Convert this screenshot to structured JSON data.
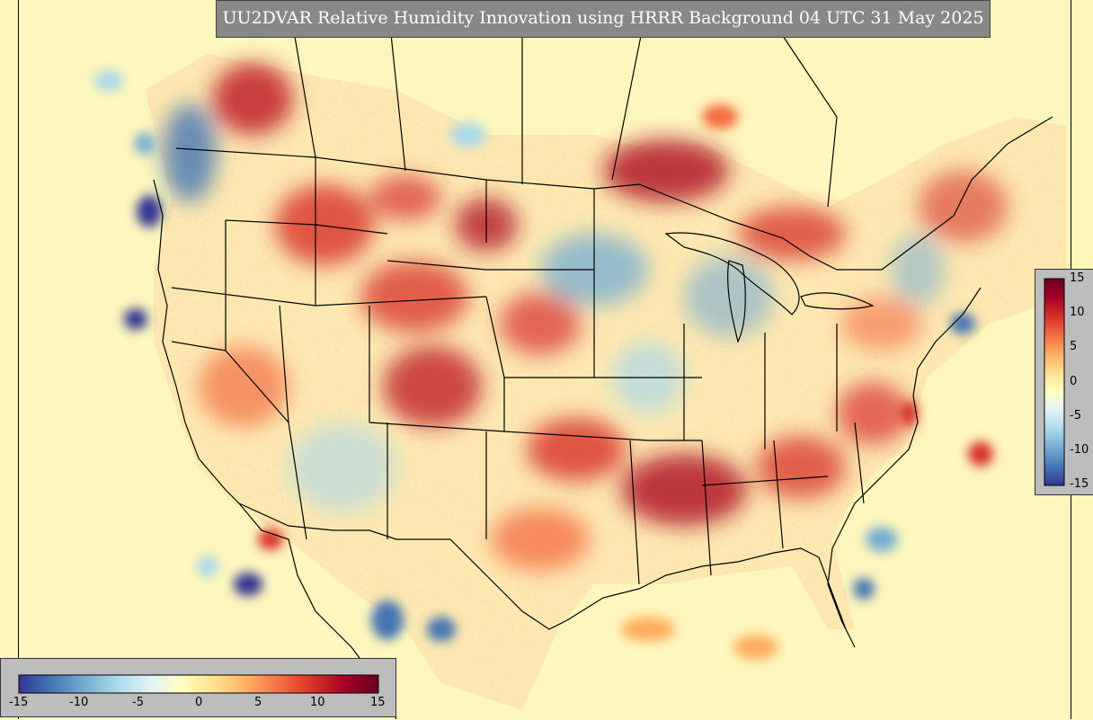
{
  "title": "UU2DVAR Relative Humidity Innovation using HRRR Background 04 UTC 31 May 2025",
  "colorbar": {
    "vmin": -15,
    "vmax": 15,
    "ticks": [
      "-15",
      "-10",
      "-5",
      "0",
      "5",
      "10",
      "15"
    ],
    "colors": [
      "#313695",
      "#4575b4",
      "#74add1",
      "#abd9e9",
      "#e0f3f8",
      "#ffffbf",
      "#fee090",
      "#fdae61",
      "#f46d43",
      "#d73027",
      "#a50026",
      "#67001f"
    ]
  },
  "map": {
    "background_color": "#fef7bd",
    "boundary_color": "#000000"
  }
}
